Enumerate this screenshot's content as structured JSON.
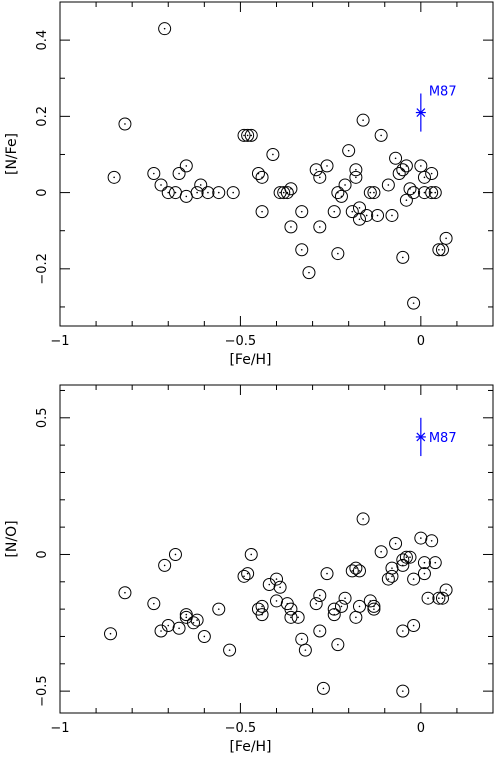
{
  "chart_data": [
    {
      "type": "scatter",
      "xlabel": "[Fe/H]",
      "ylabel": "[N/Fe]",
      "xlim": [
        -1.0,
        0.2
      ],
      "ylim": [
        -0.35,
        0.5
      ],
      "xticks": [
        -1,
        -0.5,
        0
      ],
      "xtick_labels": [
        "−1",
        "−0.5",
        "0"
      ],
      "yticks": [
        -0.2,
        0,
        0.2,
        0.4
      ],
      "ytick_labels": [
        "−0.2",
        "0",
        "0.2",
        "0.4"
      ],
      "points": [
        [
          -0.85,
          0.04
        ],
        [
          -0.82,
          0.18
        ],
        [
          -0.74,
          0.05
        ],
        [
          -0.72,
          0.02
        ],
        [
          -0.71,
          0.43
        ],
        [
          -0.7,
          0.0
        ],
        [
          -0.68,
          0.0
        ],
        [
          -0.67,
          0.05
        ],
        [
          -0.65,
          -0.01
        ],
        [
          -0.65,
          0.07
        ],
        [
          -0.62,
          0.0
        ],
        [
          -0.61,
          0.02
        ],
        [
          -0.59,
          0.0
        ],
        [
          -0.56,
          0.0
        ],
        [
          -0.52,
          0.0
        ],
        [
          -0.49,
          0.15
        ],
        [
          -0.48,
          0.15
        ],
        [
          -0.47,
          0.15
        ],
        [
          -0.45,
          0.05
        ],
        [
          -0.44,
          0.04
        ],
        [
          -0.44,
          -0.05
        ],
        [
          -0.41,
          0.1
        ],
        [
          -0.39,
          0.0
        ],
        [
          -0.38,
          0.0
        ],
        [
          -0.37,
          0.0
        ],
        [
          -0.36,
          0.01
        ],
        [
          -0.36,
          -0.09
        ],
        [
          -0.33,
          -0.15
        ],
        [
          -0.33,
          -0.05
        ],
        [
          -0.31,
          -0.21
        ],
        [
          -0.29,
          0.06
        ],
        [
          -0.28,
          0.04
        ],
        [
          -0.28,
          -0.09
        ],
        [
          -0.26,
          0.07
        ],
        [
          -0.24,
          -0.05
        ],
        [
          -0.23,
          -0.16
        ],
        [
          -0.23,
          0.0
        ],
        [
          -0.22,
          -0.01
        ],
        [
          -0.21,
          0.02
        ],
        [
          -0.2,
          0.11
        ],
        [
          -0.19,
          -0.05
        ],
        [
          -0.18,
          0.06
        ],
        [
          -0.18,
          0.04
        ],
        [
          -0.17,
          -0.04
        ],
        [
          -0.17,
          -0.07
        ],
        [
          -0.16,
          0.19
        ],
        [
          -0.15,
          -0.06
        ],
        [
          -0.14,
          0.0
        ],
        [
          -0.13,
          0.0
        ],
        [
          -0.12,
          -0.06
        ],
        [
          -0.11,
          0.15
        ],
        [
          -0.09,
          0.02
        ],
        [
          -0.08,
          -0.06
        ],
        [
          -0.07,
          0.09
        ],
        [
          -0.06,
          0.05
        ],
        [
          -0.05,
          0.06
        ],
        [
          -0.05,
          -0.17
        ],
        [
          -0.04,
          0.07
        ],
        [
          -0.04,
          -0.02
        ],
        [
          -0.03,
          0.01
        ],
        [
          -0.02,
          0.0
        ],
        [
          -0.02,
          -0.29
        ],
        [
          0.0,
          0.07
        ],
        [
          0.01,
          0.04
        ],
        [
          0.01,
          0.0
        ],
        [
          0.03,
          0.05
        ],
        [
          0.03,
          0.0
        ],
        [
          0.04,
          0.0
        ],
        [
          0.05,
          -0.15
        ],
        [
          0.06,
          -0.15
        ],
        [
          0.07,
          -0.12
        ]
      ],
      "annotation": {
        "label": "M87",
        "x": 0.0,
        "y": 0.21,
        "err_low": 0.16,
        "err_high": 0.26,
        "color": "#0000ff"
      }
    },
    {
      "type": "scatter",
      "xlabel": "[Fe/H]",
      "ylabel": "[N/O]",
      "xlim": [
        -1.0,
        0.2
      ],
      "ylim": [
        -0.58,
        0.62
      ],
      "xticks": [
        -1,
        -0.5,
        0
      ],
      "xtick_labels": [
        "−1",
        "−0.5",
        "0"
      ],
      "yticks": [
        -0.5,
        0,
        0.5
      ],
      "ytick_labels": [
        "−0.5",
        "0",
        "0.5"
      ],
      "points": [
        [
          -0.86,
          -0.29
        ],
        [
          -0.82,
          -0.14
        ],
        [
          -0.74,
          -0.18
        ],
        [
          -0.72,
          -0.28
        ],
        [
          -0.71,
          -0.04
        ],
        [
          -0.7,
          -0.26
        ],
        [
          -0.68,
          0.0
        ],
        [
          -0.67,
          -0.27
        ],
        [
          -0.65,
          -0.22
        ],
        [
          -0.65,
          -0.23
        ],
        [
          -0.63,
          -0.25
        ],
        [
          -0.62,
          -0.24
        ],
        [
          -0.6,
          -0.3
        ],
        [
          -0.56,
          -0.2
        ],
        [
          -0.53,
          -0.35
        ],
        [
          -0.49,
          -0.08
        ],
        [
          -0.48,
          -0.07
        ],
        [
          -0.47,
          0.0
        ],
        [
          -0.45,
          -0.2
        ],
        [
          -0.44,
          -0.19
        ],
        [
          -0.44,
          -0.22
        ],
        [
          -0.42,
          -0.11
        ],
        [
          -0.4,
          -0.09
        ],
        [
          -0.4,
          -0.17
        ],
        [
          -0.39,
          -0.12
        ],
        [
          -0.37,
          -0.18
        ],
        [
          -0.36,
          -0.2
        ],
        [
          -0.36,
          -0.23
        ],
        [
          -0.34,
          -0.23
        ],
        [
          -0.33,
          -0.31
        ],
        [
          -0.32,
          -0.35
        ],
        [
          -0.29,
          -0.18
        ],
        [
          -0.28,
          -0.15
        ],
        [
          -0.28,
          -0.28
        ],
        [
          -0.27,
          -0.49
        ],
        [
          -0.26,
          -0.07
        ],
        [
          -0.24,
          -0.22
        ],
        [
          -0.24,
          -0.2
        ],
        [
          -0.23,
          -0.33
        ],
        [
          -0.22,
          -0.19
        ],
        [
          -0.21,
          -0.16
        ],
        [
          -0.19,
          -0.06
        ],
        [
          -0.18,
          -0.05
        ],
        [
          -0.18,
          -0.23
        ],
        [
          -0.17,
          -0.19
        ],
        [
          -0.17,
          -0.06
        ],
        [
          -0.16,
          0.13
        ],
        [
          -0.14,
          -0.17
        ],
        [
          -0.13,
          -0.2
        ],
        [
          -0.13,
          -0.19
        ],
        [
          -0.11,
          0.01
        ],
        [
          -0.09,
          -0.09
        ],
        [
          -0.08,
          -0.05
        ],
        [
          -0.08,
          -0.08
        ],
        [
          -0.07,
          0.04
        ],
        [
          -0.05,
          -0.28
        ],
        [
          -0.05,
          -0.5
        ],
        [
          -0.05,
          -0.04
        ],
        [
          -0.05,
          -0.02
        ],
        [
          -0.04,
          -0.01
        ],
        [
          -0.03,
          -0.01
        ],
        [
          -0.02,
          -0.09
        ],
        [
          -0.02,
          -0.26
        ],
        [
          0.0,
          0.06
        ],
        [
          0.01,
          -0.03
        ],
        [
          0.01,
          -0.07
        ],
        [
          0.02,
          -0.16
        ],
        [
          0.03,
          0.05
        ],
        [
          0.04,
          -0.03
        ],
        [
          0.05,
          -0.16
        ],
        [
          0.06,
          -0.16
        ],
        [
          0.07,
          -0.13
        ]
      ],
      "annotation": {
        "label": "M87",
        "x": 0.0,
        "y": 0.43,
        "err_low": 0.36,
        "err_high": 0.5,
        "color": "#0000ff"
      }
    }
  ]
}
